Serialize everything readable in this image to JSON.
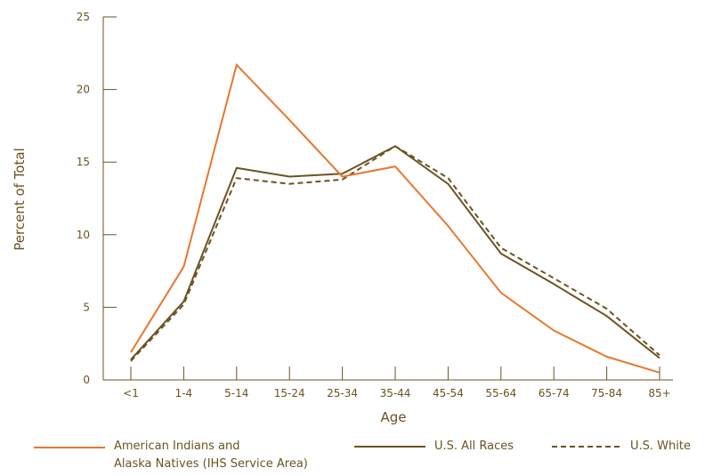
{
  "chart_data": {
    "type": "line",
    "title": "",
    "xlabel": "Age",
    "ylabel": "Percent of Total",
    "categories": [
      "<1",
      "1-4",
      "5-14",
      "15-24",
      "25-34",
      "35-44",
      "45-54",
      "55-64",
      "65-74",
      "75-84",
      "85+"
    ],
    "ylim": [
      0,
      25
    ],
    "yticks": [
      "0",
      "5",
      "10",
      "15",
      "20",
      "25"
    ],
    "grid": false,
    "legend_position": "bottom",
    "series": [
      {
        "name_lines": [
          "American Indians and",
          "Alaska Natives (IHS Service Area)"
        ],
        "color": "#e8772e",
        "style": "solid",
        "values": [
          1.9,
          7.8,
          21.7,
          17.9,
          14.0,
          14.7,
          10.6,
          6.0,
          3.4,
          1.6,
          0.5
        ]
      },
      {
        "name": "U.S. All Races",
        "color": "#6b5322",
        "style": "solid",
        "values": [
          1.4,
          5.4,
          14.6,
          14.0,
          14.2,
          16.1,
          13.5,
          8.7,
          6.6,
          4.4,
          1.5
        ]
      },
      {
        "name": "U.S. White",
        "color": "#6b5322",
        "style": "dashed",
        "values": [
          1.3,
          5.2,
          13.9,
          13.5,
          13.8,
          16.1,
          13.9,
          9.1,
          7.0,
          4.9,
          1.7
        ]
      }
    ]
  }
}
